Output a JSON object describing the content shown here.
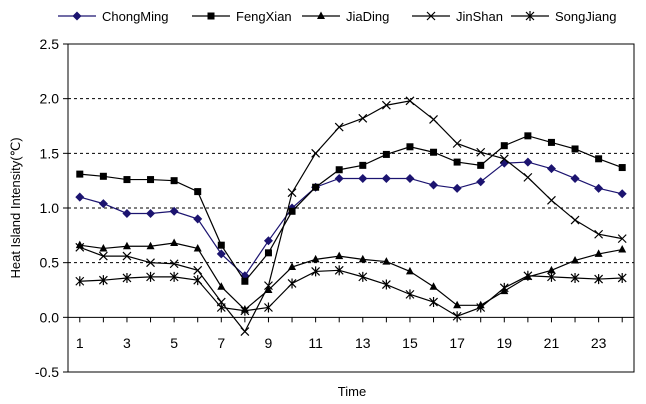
{
  "chart_data": {
    "type": "line",
    "xlabel": "Time",
    "ylabel": "Heat Island Intensity(℃)",
    "xlim": [
      0.5,
      24.5
    ],
    "ylim": [
      -0.5,
      2.5
    ],
    "x_ticks": [
      1,
      3,
      5,
      7,
      9,
      11,
      13,
      15,
      17,
      19,
      21,
      23
    ],
    "y_ticks": [
      -0.5,
      0.0,
      0.5,
      1.0,
      1.5,
      2.0,
      2.5
    ],
    "y_tick_labels": [
      "-0.5",
      "0.0",
      "0.5",
      "1.0",
      "1.5",
      "2.0",
      "2.5"
    ],
    "grid": "horizontal dashed",
    "legend_position": "top",
    "x": [
      1,
      2,
      3,
      4,
      5,
      6,
      7,
      8,
      9,
      10,
      11,
      12,
      13,
      14,
      15,
      16,
      17,
      18,
      19,
      20,
      21,
      22,
      23,
      24
    ],
    "series": [
      {
        "name": "ChongMing",
        "marker": "diamond",
        "values": [
          1.1,
          1.04,
          0.95,
          0.95,
          0.97,
          0.9,
          0.58,
          0.38,
          0.7,
          1.0,
          1.19,
          1.27,
          1.27,
          1.27,
          1.27,
          1.21,
          1.18,
          1.24,
          1.41,
          1.42,
          1.36,
          1.27,
          1.18,
          1.13
        ]
      },
      {
        "name": "FengXian",
        "marker": "square",
        "values": [
          1.31,
          1.29,
          1.26,
          1.26,
          1.25,
          1.15,
          0.66,
          0.33,
          0.59,
          0.97,
          1.19,
          1.35,
          1.39,
          1.49,
          1.56,
          1.51,
          1.42,
          1.39,
          1.57,
          1.66,
          1.6,
          1.54,
          1.45,
          1.37
        ]
      },
      {
        "name": "JiaDing",
        "marker": "triangle",
        "values": [
          0.66,
          0.63,
          0.65,
          0.65,
          0.68,
          0.63,
          0.28,
          0.07,
          0.25,
          0.46,
          0.53,
          0.56,
          0.53,
          0.51,
          0.42,
          0.28,
          0.11,
          0.11,
          0.24,
          0.37,
          0.43,
          0.52,
          0.58,
          0.62
        ]
      },
      {
        "name": "JinShan",
        "marker": "x",
        "values": [
          0.64,
          0.56,
          0.56,
          0.5,
          0.49,
          0.43,
          0.14,
          -0.13,
          0.29,
          1.14,
          1.5,
          1.74,
          1.82,
          1.94,
          1.98,
          1.81,
          1.59,
          1.51,
          1.45,
          1.28,
          1.07,
          0.89,
          0.76,
          0.72
        ]
      },
      {
        "name": "SongJiang",
        "marker": "asterisk",
        "values": [
          0.33,
          0.34,
          0.36,
          0.37,
          0.37,
          0.34,
          0.09,
          0.06,
          0.09,
          0.31,
          0.42,
          0.43,
          0.37,
          0.3,
          0.21,
          0.14,
          0.01,
          0.09,
          0.27,
          0.38,
          0.37,
          0.36,
          0.35,
          0.36
        ]
      }
    ]
  }
}
